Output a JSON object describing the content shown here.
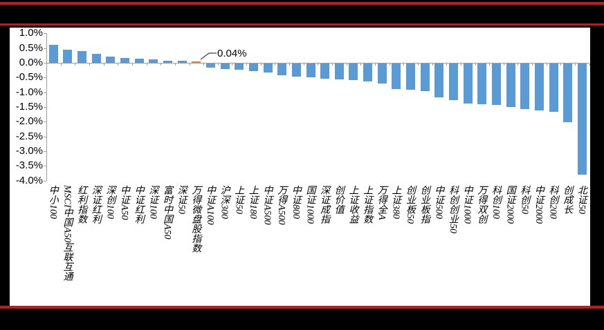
{
  "frame": {
    "background_color": "#000000",
    "rule_color": "#c8161d",
    "panel_color": "#ffffff"
  },
  "chart_data": {
    "type": "bar",
    "title": "",
    "xlabel": "",
    "ylabel": "",
    "grid": false,
    "legend": null,
    "ylim": [
      -4.0,
      1.0
    ],
    "ytick_step": 0.5,
    "ytick_labels": [
      "1.0%",
      "0.5%",
      "0.0%",
      "-0.5%",
      "-1.0%",
      "-1.5%",
      "-2.0%",
      "-2.5%",
      "-3.0%",
      "-3.5%",
      "-4.0%"
    ],
    "categories": [
      "中小100",
      "MSCI中国A50互联互通",
      "红利指数",
      "深证红利",
      "深创100",
      "中证A50",
      "中证红利",
      "深证100",
      "富时中国A50",
      "深证50",
      "万得微盘股指数",
      "中证A100",
      "沪深300",
      "上证50",
      "上证180",
      "中证A500",
      "万得A500",
      "中证800",
      "国证1000",
      "深证成指",
      "创价值",
      "上证收益",
      "上证指数",
      "万得全A",
      "上证380",
      "创业板50",
      "创业板指",
      "中证500",
      "科创创业50",
      "中证1000",
      "万得双创",
      "科创100",
      "国证2000",
      "科创50",
      "中证2000",
      "科创200",
      "创成长",
      "北证50"
    ],
    "values": [
      0.6,
      0.44,
      0.39,
      0.3,
      0.21,
      0.17,
      0.13,
      0.11,
      0.08,
      0.06,
      0.04,
      -0.14,
      -0.19,
      -0.22,
      -0.26,
      -0.3,
      -0.39,
      -0.44,
      -0.48,
      -0.51,
      -0.53,
      -0.56,
      -0.61,
      -0.69,
      -0.86,
      -0.89,
      -0.93,
      -1.14,
      -1.24,
      -1.36,
      -1.38,
      -1.41,
      -1.48,
      -1.54,
      -1.59,
      -1.63,
      -1.99,
      -3.78
    ],
    "bar_color": "#5b9bd5",
    "highlight": {
      "index": 10,
      "color": "#ed7d31"
    },
    "annotation": {
      "text": "0.04%",
      "target_index": 10
    },
    "axis_color": "#9c9c9c",
    "leader_color": "#404040"
  }
}
